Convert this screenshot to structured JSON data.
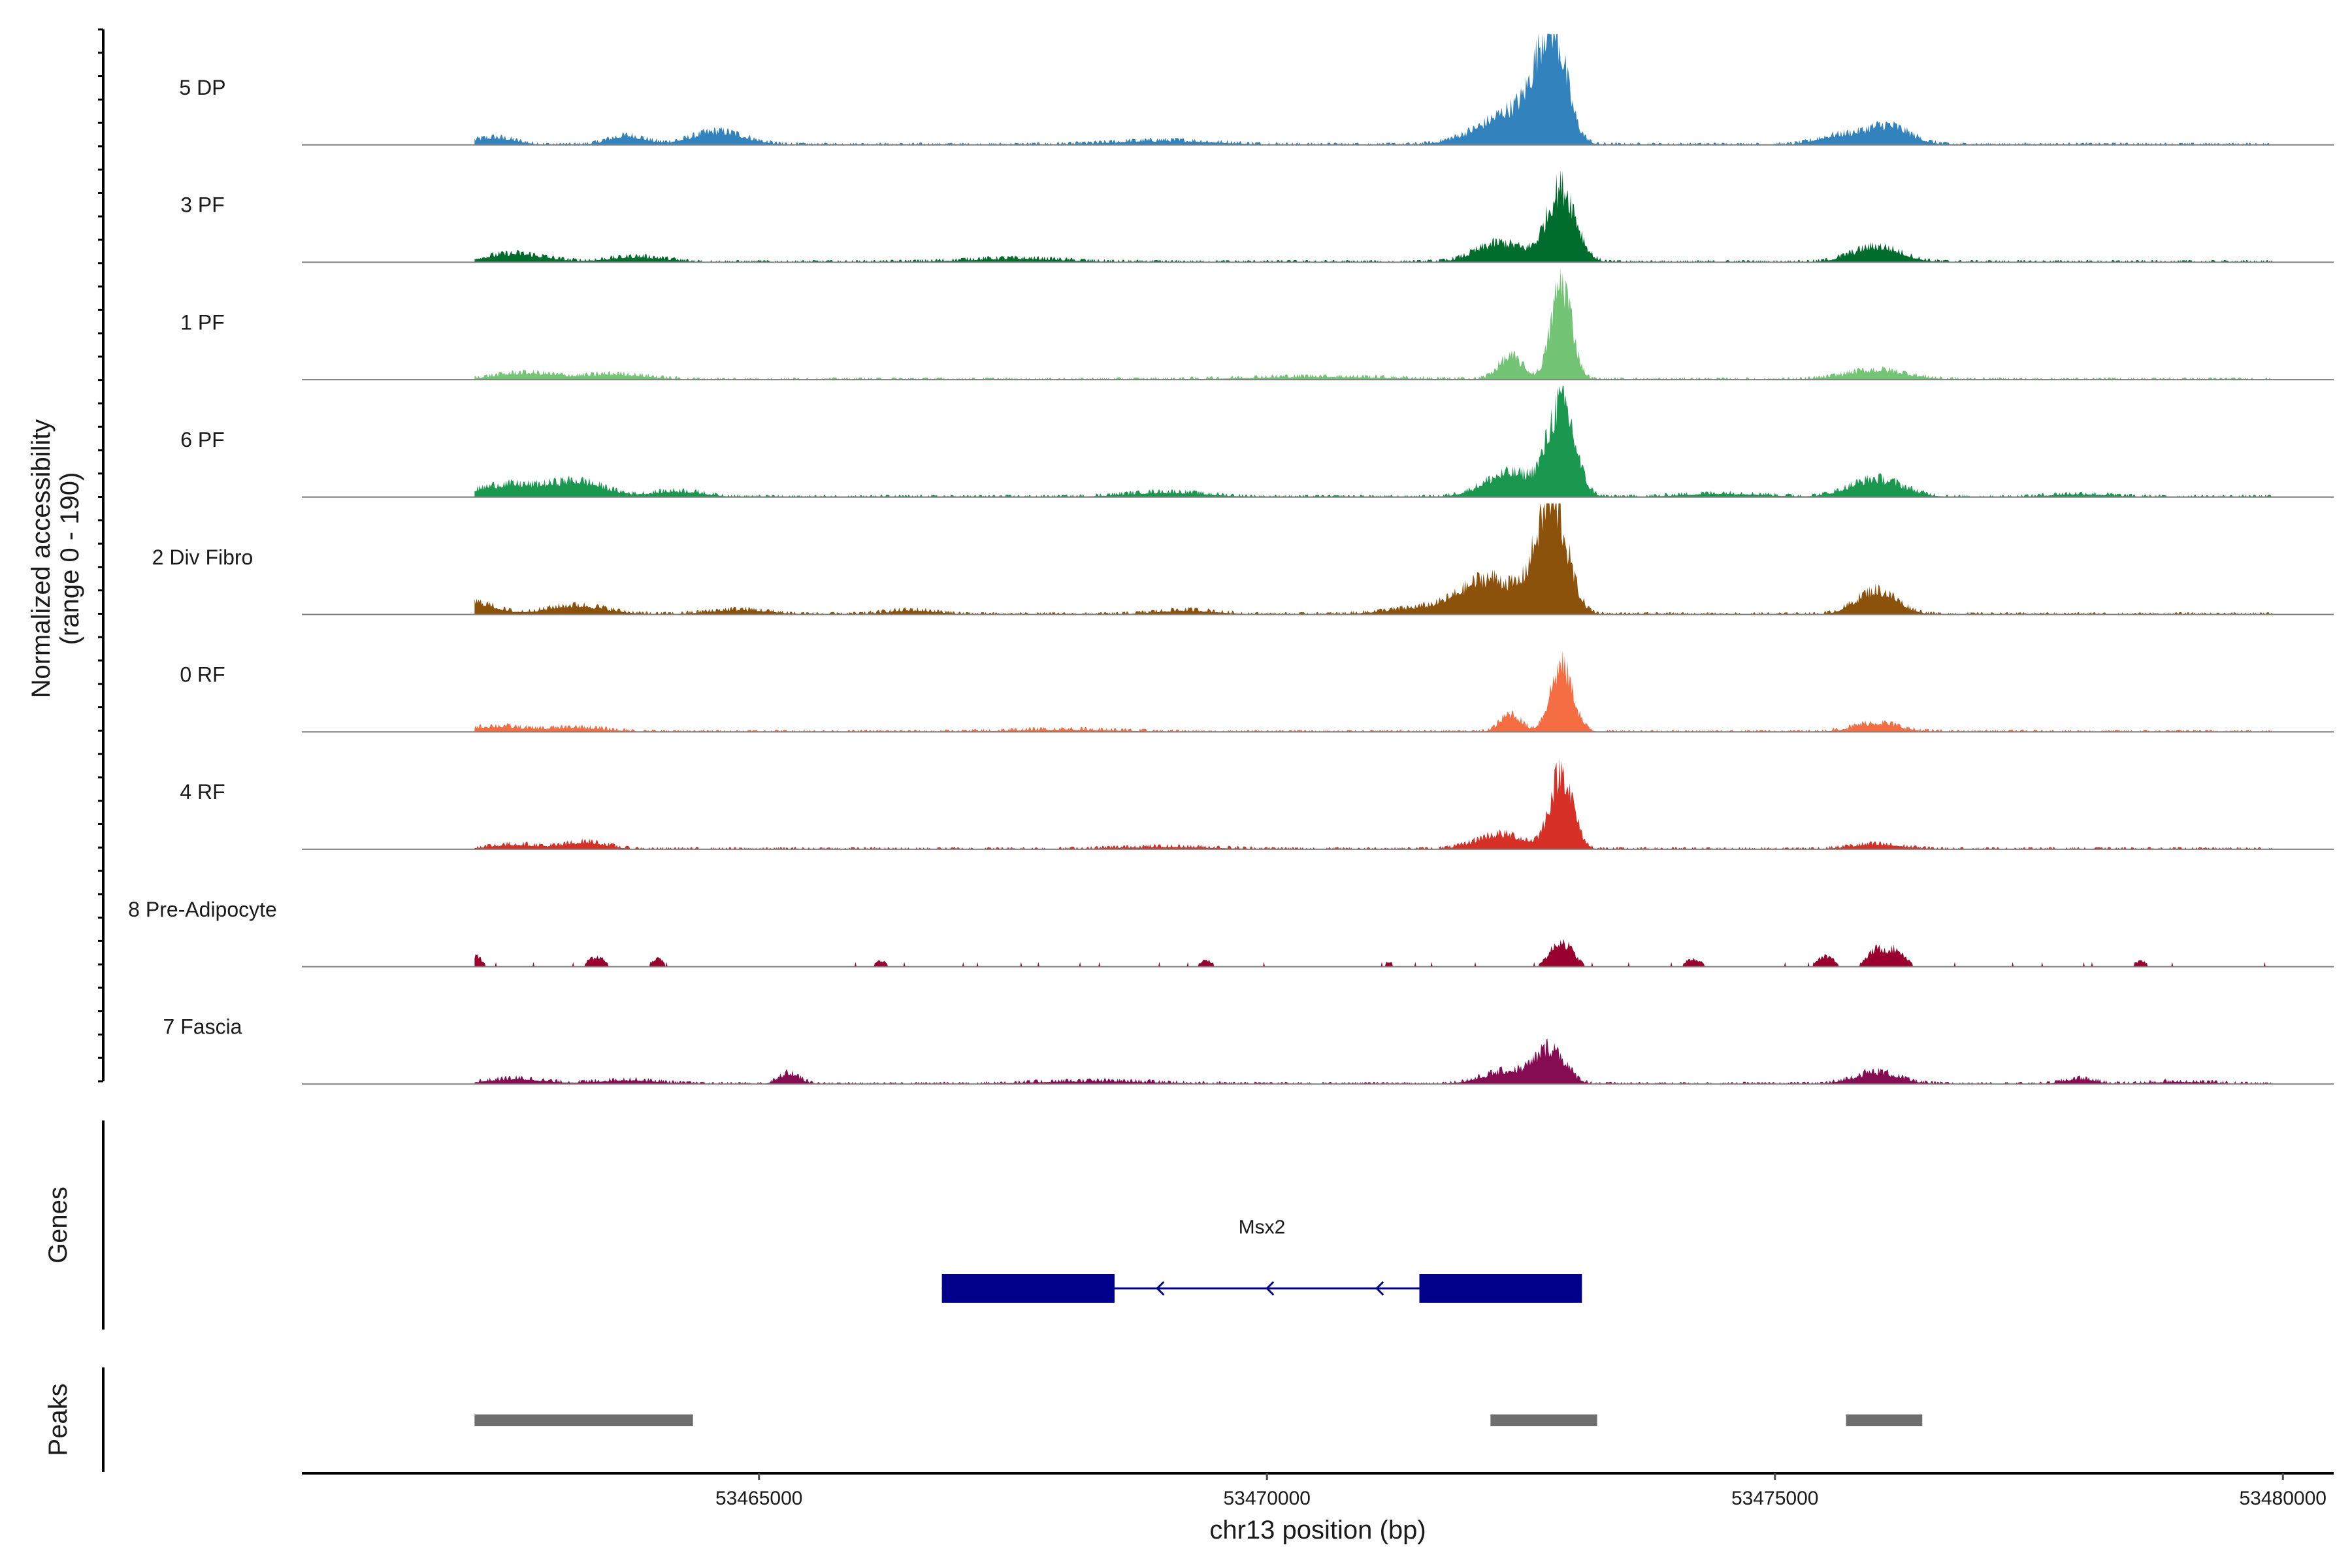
{
  "chart_data": {
    "type": "area",
    "coverage_panel": {
      "ylabel_lines": [
        "Normalized accessibility",
        "(range 0 - 190)"
      ],
      "ylim": [
        0,
        190
      ],
      "xlim": [
        53460500,
        53480500
      ],
      "tracks": [
        {
          "name": "5 DP",
          "color": "#3182bd",
          "peaks": [
            [
              53472800,
              185,
              140
            ],
            [
              53472500,
              55,
              240
            ],
            [
              53472100,
              18,
              250
            ],
            [
              53476100,
              32,
              220
            ],
            [
              53475600,
              14,
              200
            ],
            [
              53464600,
              22,
              260
            ],
            [
              53463700,
              15,
              180
            ],
            [
              53462400,
              12,
              200
            ],
            [
              53469000,
              7,
              500
            ]
          ]
        },
        {
          "name": "3 PF",
          "color": "#006d2c",
          "peaks": [
            [
              53472900,
              125,
              140
            ],
            [
              53472300,
              32,
              240
            ],
            [
              53476000,
              26,
              240
            ],
            [
              53462600,
              14,
              300
            ],
            [
              53463800,
              9,
              280
            ],
            [
              53467500,
              6,
              500
            ]
          ]
        },
        {
          "name": "1 PF",
          "color": "#74c476",
          "peaks": [
            [
              53472900,
              165,
              100
            ],
            [
              53472400,
              38,
              120
            ],
            [
              53476000,
              16,
              300
            ],
            [
              53462700,
              11,
              300
            ],
            [
              53463600,
              9,
              300
            ],
            [
              53470500,
              5,
              700
            ]
          ]
        },
        {
          "name": "6 PF",
          "color": "#1a9850",
          "peaks": [
            [
              53472900,
              155,
              130
            ],
            [
              53472400,
              40,
              260
            ],
            [
              53476000,
              30,
              260
            ],
            [
              53462500,
              20,
              280
            ],
            [
              53463200,
              26,
              280
            ],
            [
              53464200,
              10,
              250
            ],
            [
              53469000,
              8,
              400
            ],
            [
              53474500,
              6,
              400
            ],
            [
              53478000,
              5,
              300
            ]
          ]
        },
        {
          "name": "2 Div Fibro",
          "color": "#8c510a",
          "peaks": [
            [
              53472800,
              190,
              150
            ],
            [
              53472200,
              60,
              280
            ],
            [
              53471500,
              10,
              350
            ],
            [
              53476000,
              40,
              200
            ],
            [
              53462200,
              20,
              200
            ],
            [
              53463200,
              15,
              300
            ],
            [
              53464800,
              8,
              300
            ],
            [
              53466500,
              7,
              250
            ],
            [
              53469200,
              7,
              300
            ]
          ]
        },
        {
          "name": "0 RF",
          "color": "#f46d43",
          "peaks": [
            [
              53472900,
              110,
              110
            ],
            [
              53472400,
              30,
              100
            ],
            [
              53476000,
              15,
              220
            ],
            [
              53462400,
              9,
              250
            ],
            [
              53463200,
              7,
              300
            ],
            [
              53468000,
              4,
              500
            ]
          ]
        },
        {
          "name": "4 RF",
          "color": "#d73027",
          "peaks": [
            [
              53472900,
              130,
              110
            ],
            [
              53472300,
              25,
              240
            ],
            [
              53476000,
              8,
              260
            ],
            [
              53463300,
              12,
              200
            ],
            [
              53462600,
              8,
              250
            ],
            [
              53469000,
              4,
              500
            ]
          ]
        },
        {
          "name": "8 Pre-Adipocyte",
          "color": "#99002f",
          "peaks": [
            [
              53472900,
              45,
              110
            ],
            [
              53476000,
              30,
              90
            ],
            [
              53476200,
              28,
              90
            ],
            [
              53475500,
              20,
              80
            ],
            [
              53462200,
              20,
              70
            ],
            [
              53463400,
              18,
              80
            ],
            [
              53464000,
              14,
              60
            ],
            [
              53466200,
              10,
              60
            ],
            [
              53469400,
              12,
              60
            ],
            [
              53474200,
              14,
              80
            ],
            [
              53478600,
              10,
              60
            ],
            [
              53471200,
              8,
              50
            ]
          ]
        },
        {
          "name": "7 Fascia",
          "color": "#850b52",
          "peaks": [
            [
              53472800,
              55,
              140
            ],
            [
              53472400,
              22,
              260
            ],
            [
              53476000,
              20,
              220
            ],
            [
              53465300,
              18,
              100
            ],
            [
              53462600,
              9,
              280
            ],
            [
              53463700,
              7,
              300
            ],
            [
              53468300,
              5,
              600
            ],
            [
              53478000,
              9,
              150
            ],
            [
              53479000,
              4,
              300
            ]
          ]
        }
      ],
      "rough_regions": [
        [
          53462200,
          53479900
        ]
      ]
    },
    "genes_panel": {
      "title": "Genes",
      "gene": {
        "name": "Msx2",
        "strand": "-",
        "start": 53466800,
        "end": 53473100,
        "exons": [
          [
            53466800,
            53468500
          ],
          [
            53471500,
            53473100
          ]
        ],
        "color": "#00008b"
      }
    },
    "peaks_panel": {
      "title": "Peaks",
      "color": "#6e6e6e",
      "regions": [
        [
          53462200,
          53464350
        ],
        [
          53472200,
          53473250
        ],
        [
          53475700,
          53476450
        ]
      ]
    },
    "x_axis": {
      "label": "chr13 position (bp)",
      "ticks": [
        53465000,
        53470000,
        53475000,
        53480000
      ],
      "tick_labels": [
        "53465000",
        "53470000",
        "53475000",
        "53480000"
      ]
    }
  }
}
